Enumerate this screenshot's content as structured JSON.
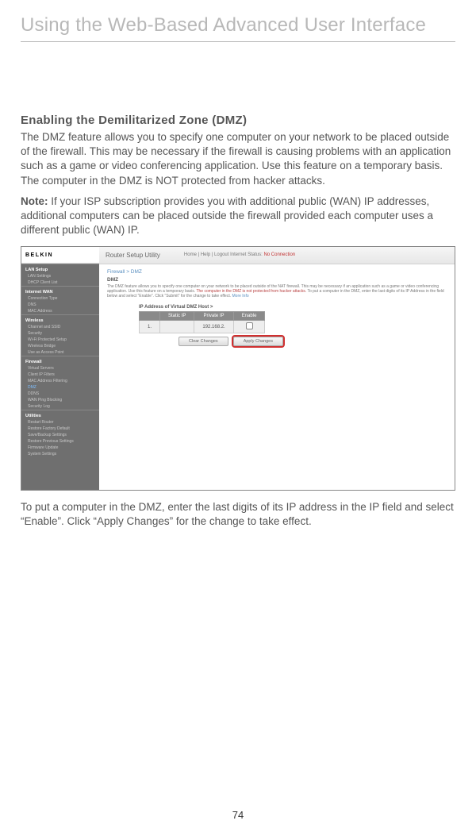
{
  "page": {
    "header": "Using the Web-Based Advanced User Interface",
    "section_title": "Enabling the Demilitarized Zone (DMZ)",
    "para1": "The DMZ feature allows you to specify one computer on your network to be placed outside of the firewall. This may be necessary if the firewall is causing problems with an application such as a game or video conferencing application. Use this feature on a temporary basis. The computer in the DMZ is NOT protected from hacker attacks.",
    "note_label": "Note:",
    "note_text": " If your ISP subscription provides you with additional public (WAN) IP addresses, additional computers can be placed outside the firewall provided each computer uses a different public (WAN) IP.",
    "para2": "To put a computer in the DMZ, enter the last digits of its IP address in the IP field and select “Enable”. Click “Apply Changes” for the change to take effect.",
    "page_number": "74"
  },
  "screenshot": {
    "logo": "BELKIN",
    "topbar": {
      "title": "Router Setup Utility",
      "links": "Home  |  Help  |  Logout    Internet Status:",
      "status": "No Connection"
    },
    "sidebar": {
      "groups": [
        {
          "header": "LAN Setup",
          "items": [
            "LAN Settings",
            "DHCP Client List"
          ]
        },
        {
          "header": "Internet WAN",
          "items": [
            "Connection Type",
            "DNS",
            "MAC Address"
          ]
        },
        {
          "header": "Wireless",
          "items": [
            "Channel and SSID",
            "Security",
            "Wi-Fi Protected Setup",
            "Wireless Bridge",
            "Use as Access Point"
          ]
        },
        {
          "header": "Firewall",
          "items": [
            "Virtual Servers",
            "Client IP Filters",
            "MAC Address Filtering",
            "DMZ",
            "DDNS",
            "WAN Ping Blocking",
            "Security Log"
          ]
        },
        {
          "header": "Utilities",
          "items": [
            "Restart Router",
            "Restore Factory Default",
            "Save/Backup Settings",
            "Restore Previous Settings",
            "Firmware Update",
            "System Settings"
          ]
        }
      ],
      "active_item": "DMZ"
    },
    "content": {
      "crumb": "Firewall > DMZ",
      "heading": "DMZ",
      "desc_plain": "The DMZ feature allows you to specify one computer on your network to be placed outside of the NAT firewall. This may be necessary if an application such as a game or video conferencing application. Use this feature on a temporary basis. ",
      "desc_warn": "The computer in the DMZ is not protected from hacker attacks.",
      "desc_tail": " To put a computer in the DMZ, enter the last digits of its IP Address in the field below and select “Enable”. Click “Submit” for the change to take effect.",
      "more_info": "More Info",
      "ip_label": "IP Address of Virtual DMZ Host >",
      "table": {
        "headers": [
          "",
          "Static IP",
          "Private IP",
          "Enable"
        ],
        "row": [
          "1.",
          "",
          "192.168.2.",
          ""
        ]
      },
      "buttons": {
        "clear": "Clear Changes",
        "apply": "Apply Changes"
      }
    }
  }
}
